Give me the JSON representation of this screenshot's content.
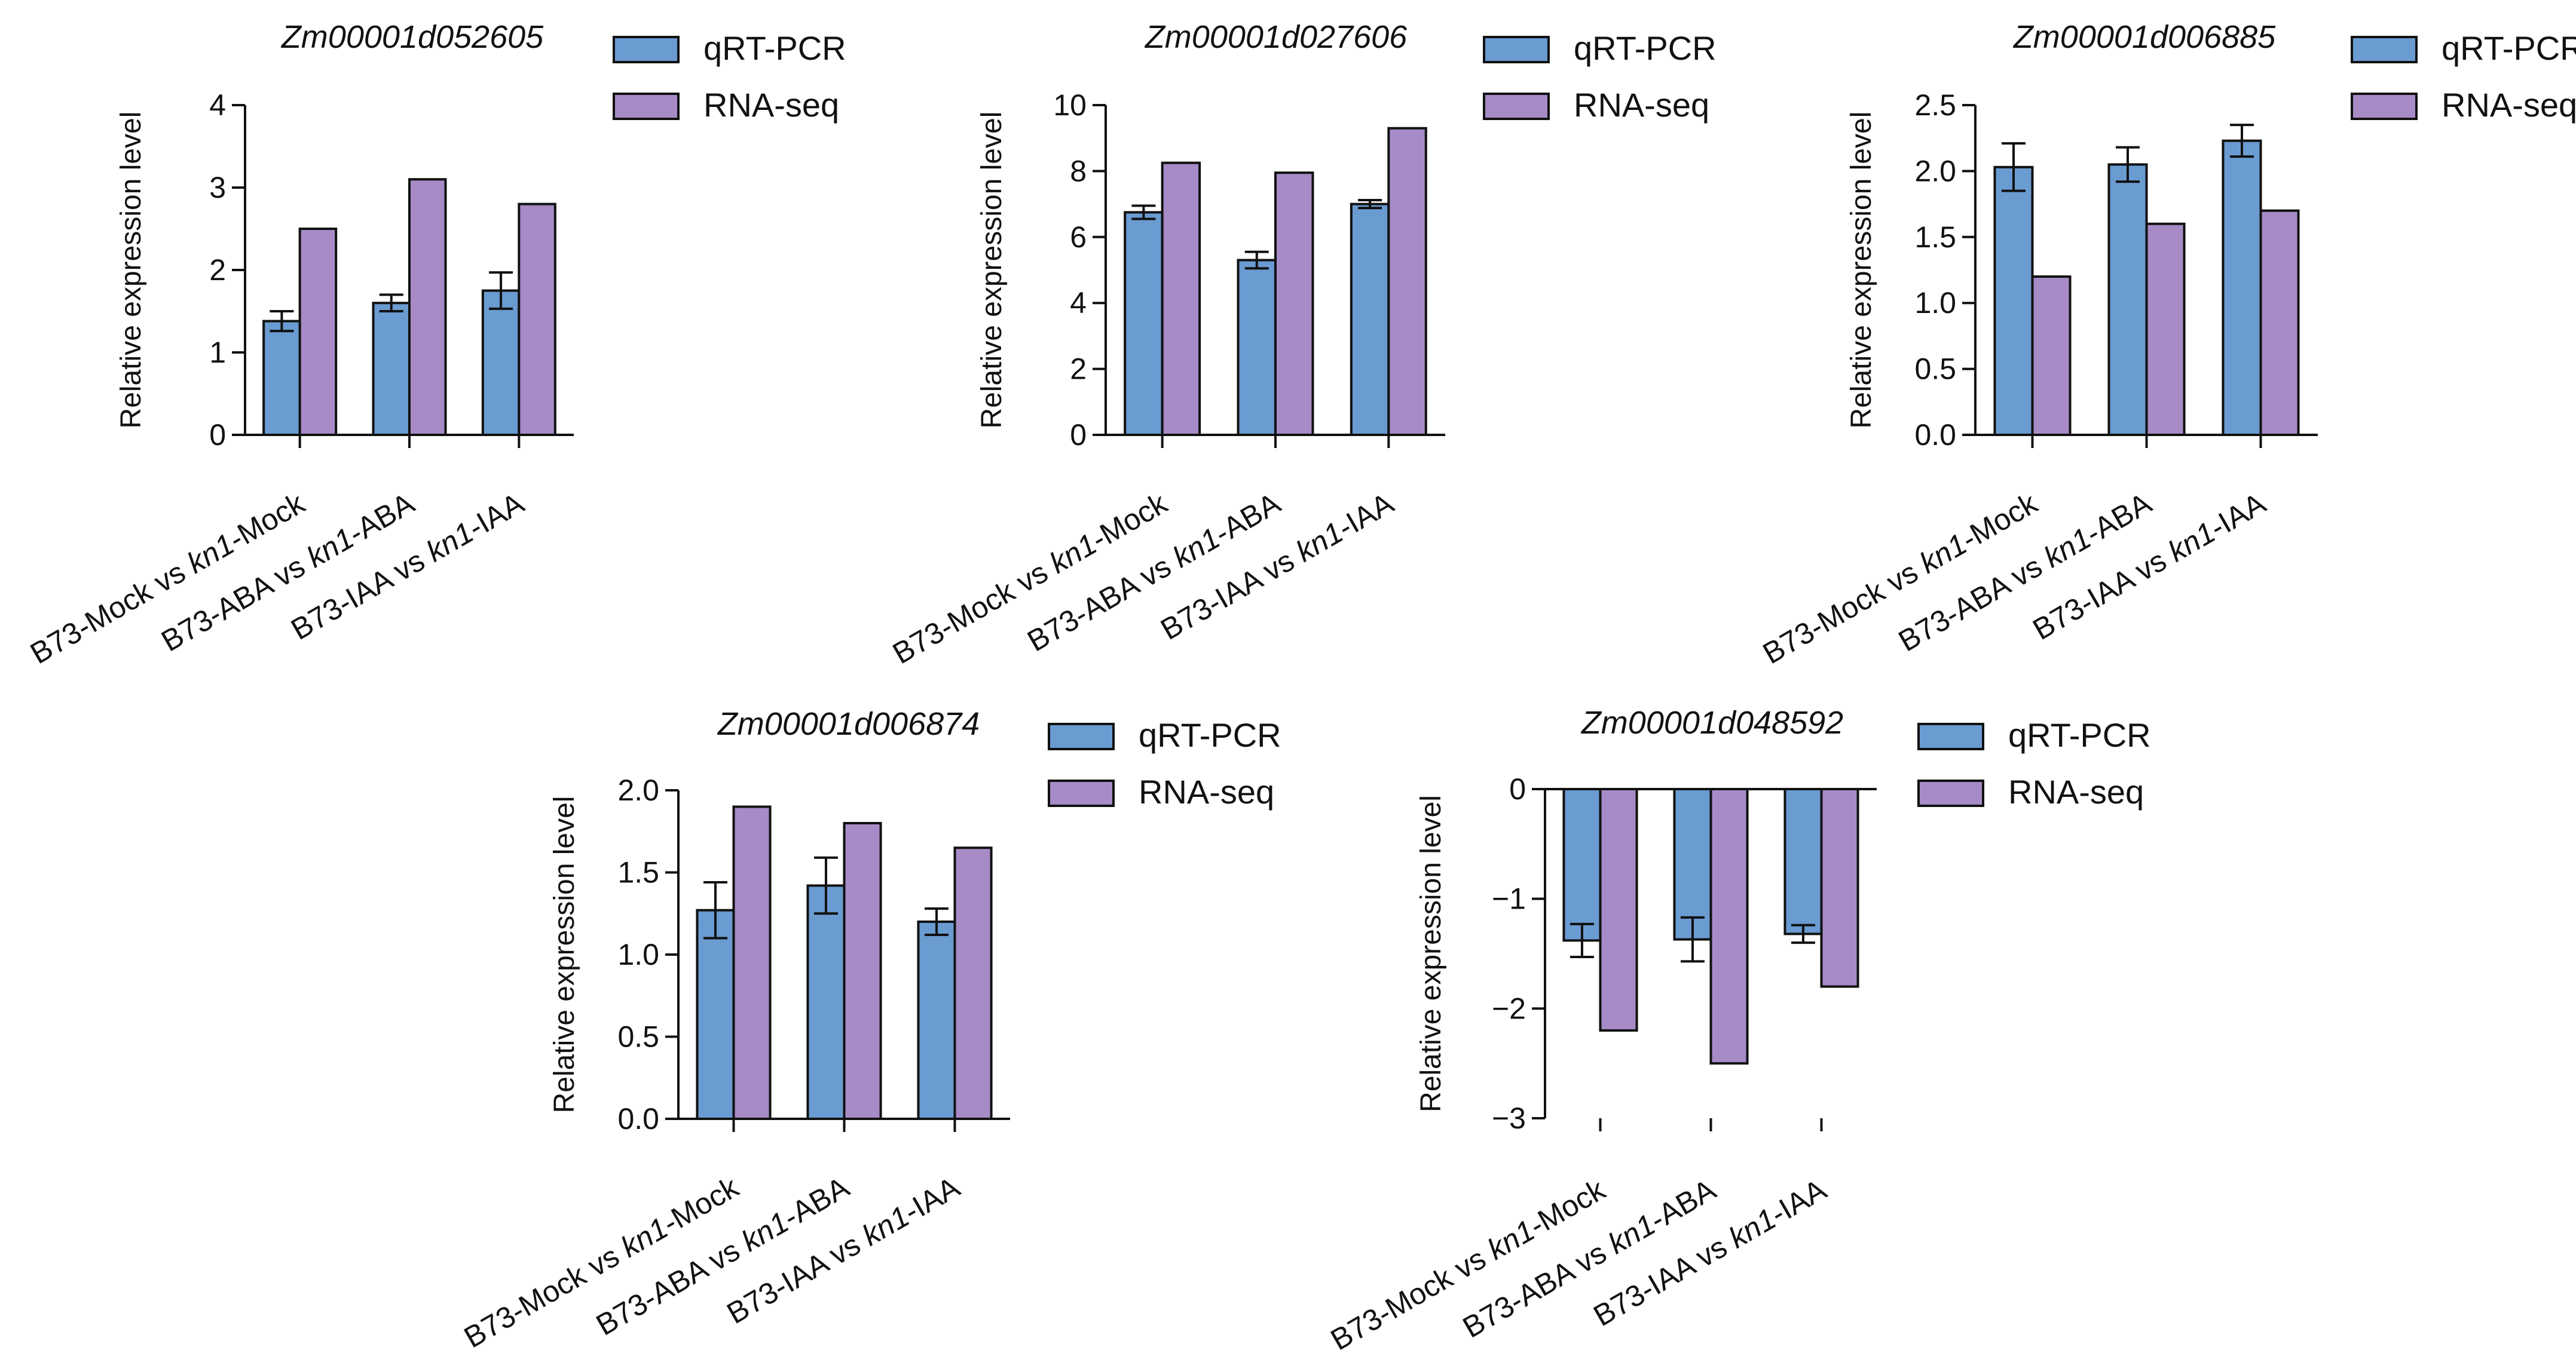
{
  "chart_data": [
    {
      "type": "bar",
      "title": "Zm00001d052605",
      "ylabel": "Relative expression level",
      "xlabel": "",
      "ylim": [
        0,
        4
      ],
      "yticks": [
        "0",
        "1",
        "2",
        "3",
        "4"
      ],
      "categories": [
        {
          "prefix": "B73-Mock vs ",
          "italic": "kn1",
          "suffix": "-Mock"
        },
        {
          "prefix": "B73-ABA vs ",
          "italic": "kn1",
          "suffix": "-ABA"
        },
        {
          "prefix": "B73-IAA vs ",
          "italic": "kn1",
          "suffix": "-IAA"
        }
      ],
      "series": [
        {
          "name": "qRT-PCR",
          "values": [
            1.38,
            1.6,
            1.75
          ],
          "errors": [
            0.12,
            0.1,
            0.22
          ]
        },
        {
          "name": "RNA-seq",
          "values": [
            2.5,
            3.1,
            2.8
          ]
        }
      ],
      "legend": "right",
      "grid": false
    },
    {
      "type": "bar",
      "title": "Zm00001d027606",
      "ylabel": "Relative expression level",
      "xlabel": "",
      "ylim": [
        0,
        10
      ],
      "yticks": [
        "0",
        "2",
        "4",
        "6",
        "8",
        "10"
      ],
      "categories": [
        {
          "prefix": "B73-Mock vs ",
          "italic": "kn1",
          "suffix": "-Mock"
        },
        {
          "prefix": "B73-ABA vs ",
          "italic": "kn1",
          "suffix": "-ABA"
        },
        {
          "prefix": "B73-IAA vs ",
          "italic": "kn1",
          "suffix": "-IAA"
        }
      ],
      "series": [
        {
          "name": "qRT-PCR",
          "values": [
            6.75,
            5.3,
            7.0
          ],
          "errors": [
            0.2,
            0.25,
            0.12
          ]
        },
        {
          "name": "RNA-seq",
          "values": [
            8.25,
            7.95,
            9.3
          ]
        }
      ],
      "legend": "right",
      "grid": false
    },
    {
      "type": "bar",
      "title": "Zm00001d006885",
      "ylabel": "Relative expression level",
      "xlabel": "",
      "ylim": [
        0,
        2.5
      ],
      "yticks": [
        "0.0",
        "0.5",
        "1.0",
        "1.5",
        "2.0",
        "2.5"
      ],
      "categories": [
        {
          "prefix": "B73-Mock vs ",
          "italic": "kn1",
          "suffix": "-Mock"
        },
        {
          "prefix": "B73-ABA vs ",
          "italic": "kn1",
          "suffix": "-ABA"
        },
        {
          "prefix": "B73-IAA vs ",
          "italic": "kn1",
          "suffix": "-IAA"
        }
      ],
      "series": [
        {
          "name": "qRT-PCR",
          "values": [
            2.03,
            2.05,
            2.23
          ],
          "errors": [
            0.18,
            0.13,
            0.12
          ]
        },
        {
          "name": "RNA-seq",
          "values": [
            1.2,
            1.6,
            1.7
          ]
        }
      ],
      "legend": "right",
      "grid": false
    },
    {
      "type": "bar",
      "title": "Zm00001d006874",
      "ylabel": "Relative expression level",
      "xlabel": "",
      "ylim": [
        0,
        2.0
      ],
      "yticks": [
        "0.0",
        "0.5",
        "1.0",
        "1.5",
        "2.0"
      ],
      "categories": [
        {
          "prefix": "B73-Mock vs ",
          "italic": "kn1",
          "suffix": "-Mock"
        },
        {
          "prefix": "B73-ABA vs ",
          "italic": "kn1",
          "suffix": "-ABA"
        },
        {
          "prefix": "B73-IAA vs ",
          "italic": "kn1",
          "suffix": "-IAA"
        }
      ],
      "series": [
        {
          "name": "qRT-PCR",
          "values": [
            1.27,
            1.42,
            1.2
          ],
          "errors": [
            0.17,
            0.17,
            0.08
          ]
        },
        {
          "name": "RNA-seq",
          "values": [
            1.9,
            1.8,
            1.65
          ]
        }
      ],
      "legend": "right",
      "grid": false
    },
    {
      "type": "bar",
      "title": "Zm00001d048592",
      "ylabel": "Relative expression level",
      "xlabel": "",
      "ylim": [
        -3,
        0
      ],
      "yticks": [
        "−3",
        "−2",
        "−1",
        "0"
      ],
      "categories": [
        {
          "prefix": "B73-Mock vs ",
          "italic": "kn1",
          "suffix": "-Mock"
        },
        {
          "prefix": "B73-ABA vs ",
          "italic": "kn1",
          "suffix": "-ABA"
        },
        {
          "prefix": "B73-IAA vs ",
          "italic": "kn1",
          "suffix": "-IAA"
        }
      ],
      "series": [
        {
          "name": "qRT-PCR",
          "values": [
            -1.38,
            -1.37,
            -1.32
          ],
          "errors": [
            0.15,
            0.2,
            0.08
          ]
        },
        {
          "name": "RNA-seq",
          "values": [
            -2.2,
            -2.5,
            -1.8
          ]
        }
      ],
      "legend": "right",
      "grid": false
    }
  ],
  "colors": {
    "qrtpcr": "#6a9bd1",
    "rnaseq": "#a78bc7",
    "axis": "#111111"
  }
}
